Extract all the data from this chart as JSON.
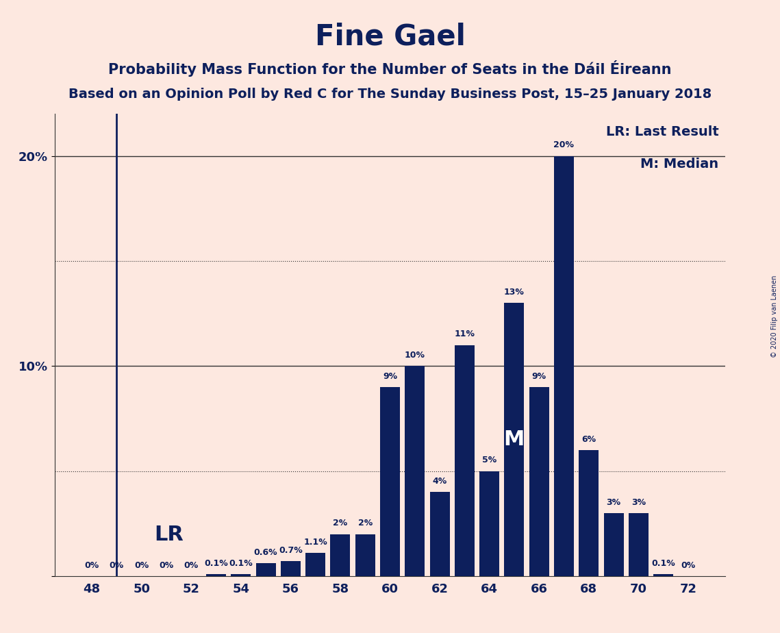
{
  "title": "Fine Gael",
  "subtitle1": "Probability Mass Function for the Number of Seats in the Dáil Éireann",
  "subtitle2": "Based on an Opinion Poll by Red C for The Sunday Business Post, 15–25 January 2018",
  "seats": [
    48,
    49,
    50,
    51,
    52,
    53,
    54,
    55,
    56,
    57,
    58,
    59,
    60,
    61,
    62,
    63,
    64,
    65,
    66,
    67,
    68,
    69,
    70,
    71,
    72
  ],
  "probs": [
    0.0,
    0.0,
    0.0,
    0.0,
    0.0,
    0.1,
    0.1,
    0.6,
    0.7,
    1.1,
    2.0,
    2.0,
    9.0,
    10.0,
    4.0,
    11.0,
    5.0,
    13.0,
    9.0,
    20.0,
    6.0,
    3.0,
    3.0,
    0.1,
    0.0
  ],
  "bar_labels": [
    "0%",
    "0%",
    "0%",
    "0%",
    "0%",
    "0.1%",
    "0.1%",
    "0.6%",
    "0.7%",
    "1.1%",
    "2%",
    "2%",
    "9%",
    "10%",
    "4%",
    "11%",
    "5%",
    "13%",
    "9%",
    "20%",
    "6%",
    "3%",
    "3%",
    "0.1%",
    "0%"
  ],
  "bar_color": "#0d1f5c",
  "background_color": "#fde8e0",
  "LR_seat": 49,
  "median_seat": 65,
  "yticks": [
    0,
    10,
    20
  ],
  "ylim": [
    0,
    22
  ],
  "copyright": "© 2020 Filip van Laenen",
  "legend_lr": "LR: Last Result",
  "legend_m": "M: Median",
  "xlim": [
    46.5,
    73.5
  ],
  "xticks": [
    48,
    50,
    52,
    54,
    56,
    58,
    60,
    62,
    64,
    66,
    68,
    70,
    72
  ]
}
